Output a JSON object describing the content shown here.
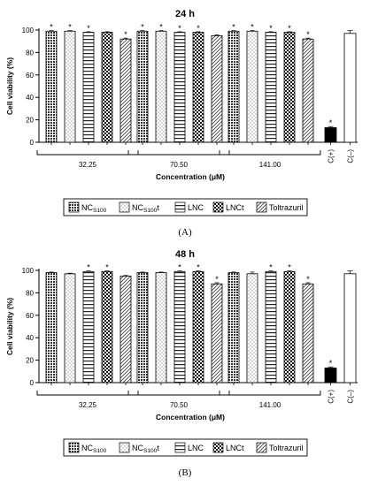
{
  "chart_data": [
    {
      "type": "bar",
      "title": "24 h",
      "panel_label": "(A)",
      "ylabel": "Cell viability (%)",
      "xlabel": "Concentration (μM)",
      "ylim": [
        0,
        100
      ],
      "yticks": [
        0,
        20,
        40,
        60,
        80,
        100
      ],
      "groups": [
        "32.25",
        "70.50",
        "141.00"
      ],
      "series": [
        {
          "name": "NCS100",
          "pattern": "dense-dots",
          "values": [
            99,
            99,
            99
          ],
          "errors": [
            0.5,
            0.5,
            0.5
          ],
          "significant": [
            true,
            true,
            true
          ]
        },
        {
          "name": "NCS100t",
          "pattern": "light-dots",
          "values": [
            99,
            99,
            99
          ],
          "errors": [
            0.5,
            0.5,
            0.5
          ],
          "significant": [
            true,
            true,
            true
          ]
        },
        {
          "name": "LNC",
          "pattern": "horizontal-lines",
          "values": [
            98,
            98,
            98
          ],
          "errors": [
            0.5,
            0.5,
            0.5
          ],
          "significant": [
            true,
            true,
            true
          ]
        },
        {
          "name": "LNCt",
          "pattern": "checkerboard",
          "values": [
            98,
            98,
            98
          ],
          "errors": [
            0.5,
            0.5,
            0.5
          ],
          "significant": [
            false,
            true,
            true
          ]
        },
        {
          "name": "Toltrazuril",
          "pattern": "diagonal-lines",
          "values": [
            92,
            95,
            92
          ],
          "errors": [
            0.8,
            0.8,
            0.8
          ],
          "significant": [
            true,
            false,
            true
          ]
        }
      ],
      "controls": [
        {
          "label": "C(+)",
          "value": 13,
          "error": 1.0,
          "fill": "#000000",
          "significant": true
        },
        {
          "label": "C(–)",
          "value": 97,
          "error": 2.5,
          "fill": "#ffffff",
          "significant": false
        }
      ],
      "significance_marker": "*"
    },
    {
      "type": "bar",
      "title": "48 h",
      "panel_label": "(B)",
      "ylabel": "Cell viability (%)",
      "xlabel": "Concentration (μM)",
      "ylim": [
        0,
        100
      ],
      "yticks": [
        0,
        20,
        40,
        60,
        80,
        100
      ],
      "groups": [
        "32.25",
        "70.50",
        "141.00"
      ],
      "series": [
        {
          "name": "NCS100",
          "pattern": "dense-dots",
          "values": [
            98,
            98,
            98
          ],
          "errors": [
            0.5,
            0.5,
            0.5
          ],
          "significant": [
            false,
            false,
            false
          ]
        },
        {
          "name": "NCS100t",
          "pattern": "light-dots",
          "values": [
            97,
            98,
            97
          ],
          "errors": [
            0.5,
            0.5,
            1.5
          ],
          "significant": [
            false,
            false,
            false
          ]
        },
        {
          "name": "LNC",
          "pattern": "horizontal-lines",
          "values": [
            99,
            99,
            99
          ],
          "errors": [
            0.5,
            0.5,
            0.5
          ],
          "significant": [
            true,
            true,
            true
          ]
        },
        {
          "name": "LNCt",
          "pattern": "checkerboard",
          "values": [
            99,
            99,
            99
          ],
          "errors": [
            0.5,
            0.5,
            0.5
          ],
          "significant": [
            true,
            true,
            true
          ]
        },
        {
          "name": "Toltrazuril",
          "pattern": "diagonal-lines",
          "values": [
            95,
            88,
            88
          ],
          "errors": [
            0.5,
            1.0,
            1.0
          ],
          "significant": [
            false,
            true,
            true
          ]
        }
      ],
      "controls": [
        {
          "label": "C(+)",
          "value": 13,
          "error": 1.0,
          "fill": "#000000",
          "significant": true
        },
        {
          "label": "C(–)",
          "value": 97,
          "error": 2.5,
          "fill": "#ffffff",
          "significant": false
        }
      ],
      "significance_marker": "*"
    }
  ],
  "legend": {
    "entries": [
      {
        "main": "NC",
        "sub": "S100",
        "suffix": "",
        "pattern": "dense-dots"
      },
      {
        "main": "NC",
        "sub": "S100",
        "suffix": "t",
        "pattern": "light-dots"
      },
      {
        "main": "LNC",
        "sub": "",
        "suffix": "",
        "pattern": "horizontal-lines"
      },
      {
        "main": "LNCt",
        "sub": "",
        "suffix": "",
        "pattern": "checkerboard"
      },
      {
        "main": "Toltrazuril",
        "sub": "",
        "suffix": "",
        "pattern": "diagonal-lines"
      }
    ]
  }
}
